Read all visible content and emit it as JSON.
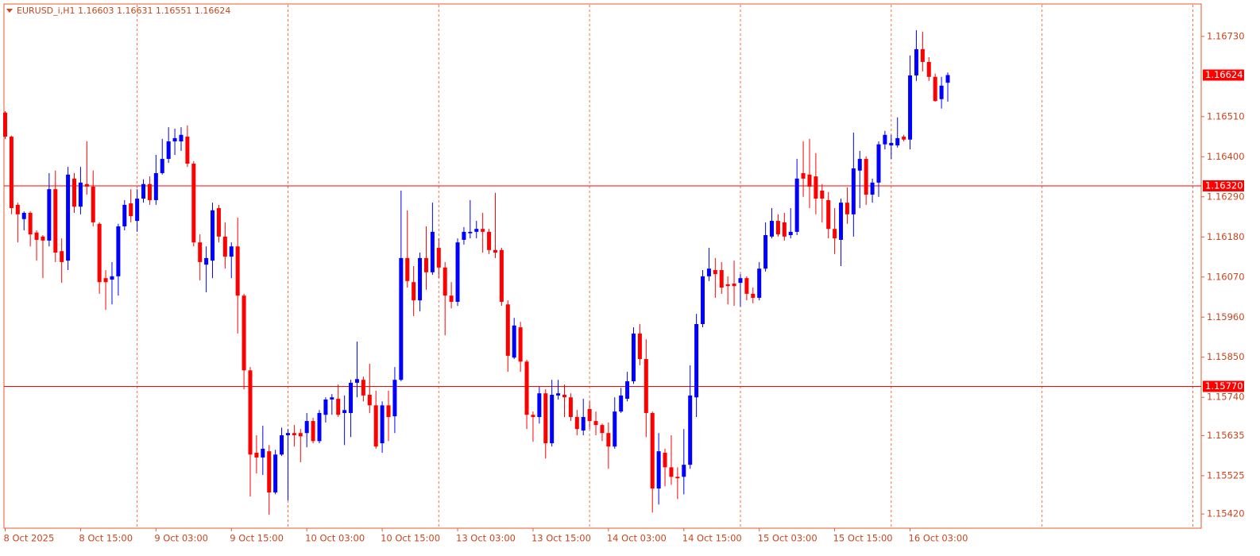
{
  "chart_data": {
    "type": "candlestick",
    "title": "EURUSD_i,H1  1.16603 1.16631 1.16551 1.16624",
    "up_color": "#0000ff",
    "down_color": "#ff0000",
    "hline_color": "#ff0000",
    "categories": [
      "8 Oct 2025",
      null,
      null,
      null,
      null,
      null,
      null,
      null,
      null,
      null,
      null,
      null,
      "8 Oct 15:00",
      null,
      null,
      null,
      null,
      null,
      null,
      null,
      null,
      null,
      null,
      null,
      "9 Oct 03:00",
      null,
      null,
      null,
      null,
      null,
      null,
      null,
      null,
      null,
      null,
      null,
      "9 Oct 15:00",
      null,
      null,
      null,
      null,
      null,
      null,
      null,
      null,
      null,
      null,
      null,
      "10 Oct 03:00",
      null,
      null,
      null,
      null,
      null,
      null,
      null,
      null,
      null,
      null,
      null,
      "10 Oct 15:00",
      null,
      null,
      null,
      null,
      null,
      null,
      null,
      null,
      null,
      null,
      null,
      "13 Oct 03:00",
      null,
      null,
      null,
      null,
      null,
      null,
      null,
      null,
      null,
      null,
      null,
      "13 Oct 15:00",
      null,
      null,
      null,
      null,
      null,
      null,
      null,
      null,
      null,
      null,
      null,
      "14 Oct 03:00",
      null,
      null,
      null,
      null,
      null,
      null,
      null,
      null,
      null,
      null,
      null,
      "14 Oct 15:00",
      null,
      null,
      null,
      null,
      null,
      null,
      null,
      null,
      null,
      null,
      null,
      "15 Oct 03:00",
      null,
      null,
      null,
      null,
      null,
      null,
      null,
      null,
      null,
      null,
      null,
      "15 Oct 15:00",
      null,
      null,
      null,
      null,
      null,
      null,
      null,
      null,
      null,
      null,
      null,
      "16 Oct 03:00",
      null,
      null,
      null,
      null,
      null,
      null
    ],
    "open": [
      1.16521,
      1.16455,
      1.16268,
      1.16229,
      1.16246,
      1.16192,
      1.16181,
      1.1617,
      1.16311,
      1.16141,
      1.16115,
      1.1634,
      1.16263,
      1.16325,
      1.16318,
      1.16216,
      1.16067,
      1.16063,
      1.16072,
      1.16209,
      1.16272,
      1.16224,
      1.16285,
      1.16325,
      1.16281,
      1.16355,
      1.16394,
      1.16442,
      1.16442,
      1.16455,
      1.16381,
      1.16165,
      1.16104,
      1.16115,
      1.16259,
      1.16181,
      1.16126,
      1.16154,
      1.16019,
      1.15814,
      1.15588,
      1.15575,
      1.15592,
      1.15479,
      1.15583,
      1.15636,
      1.15642,
      1.15642,
      1.15642,
      1.15675,
      1.1562,
      1.15692,
      1.15734,
      1.15736,
      1.15697,
      1.15697,
      1.1578,
      1.15788,
      1.15747,
      1.15718,
      1.15614,
      1.15718,
      1.15688,
      1.15788,
      1.16122,
      1.16056,
      1.16006,
      1.16122,
      1.16083,
      1.1615,
      1.16096,
      1.16019,
      1.16002,
      1.16172,
      1.1619,
      1.16194,
      1.16202,
      1.16194,
      1.16144,
      1.16144,
      1.15995,
      1.15849,
      1.15932,
      1.15838,
      1.15692,
      1.15686,
      1.15751,
      1.15614,
      1.15745,
      1.15747,
      1.1574,
      1.15686,
      1.15649,
      1.15708,
      1.15675,
      1.15664,
      1.15642,
      1.15605,
      1.15701,
      1.15736,
      1.15784,
      1.15915,
      1.15845,
      1.15697,
      1.1549,
      1.15588,
      1.15548,
      1.15522,
      1.15522,
      1.15555,
      1.1574,
      1.15941,
      1.16072,
      1.16089,
      1.16089,
      1.1605,
      1.16052,
      1.16054,
      1.16067,
      1.16024,
      1.16013,
      1.16093,
      1.16181,
      1.16224,
      1.1622,
      1.16185,
      1.16194,
      1.16355,
      1.16351,
      1.16346,
      1.16307,
      1.16281,
      1.16202,
      1.16172,
      1.16274,
      1.16242,
      1.16362,
      1.16394,
      1.16296,
      1.16329,
      1.16434,
      1.16431,
      1.16431,
      1.16455,
      1.16447,
      1.16623,
      1.16695,
      1.1666,
      1.16619,
      1.16558,
      1.16603
    ],
    "high": [
      1.16525,
      1.16458,
      1.16274,
      1.1625,
      1.1625,
      1.16198,
      1.16185,
      1.16355,
      1.16362,
      1.16176,
      1.16372,
      1.16355,
      1.16372,
      1.16442,
      1.16362,
      1.1622,
      1.16089,
      1.16111,
      1.16216,
      1.16281,
      1.16311,
      1.16311,
      1.16338,
      1.16346,
      1.16405,
      1.16449,
      1.16481,
      1.16477,
      1.16481,
      1.16486,
      1.16388,
      1.16187,
      1.16154,
      1.16274,
      1.16268,
      1.1622,
      1.16165,
      1.16233,
      1.16024,
      1.15823,
      1.15636,
      1.15662,
      1.15609,
      1.15596,
      1.15657,
      1.15653,
      1.15664,
      1.15653,
      1.15697,
      1.15684,
      1.15705,
      1.1574,
      1.15749,
      1.15775,
      1.15745,
      1.15788,
      1.15893,
      1.15797,
      1.15832,
      1.15758,
      1.15729,
      1.15758,
      1.15823,
      1.16307,
      1.16253,
      1.161,
      1.16137,
      1.16209,
      1.16274,
      1.16176,
      1.16111,
      1.16056,
      1.16176,
      1.16207,
      1.16281,
      1.16224,
      1.16246,
      1.16202,
      1.16301,
      1.1615,
      1.16006,
      1.15958,
      1.15947,
      1.15843,
      1.15701,
      1.15769,
      1.15762,
      1.15788,
      1.15788,
      1.15775,
      1.15751,
      1.15705,
      1.15736,
      1.15729,
      1.15701,
      1.15668,
      1.15671,
      1.1574,
      1.15766,
      1.1581,
      1.15932,
      1.15941,
      1.15899,
      1.15701,
      1.15642,
      1.15599,
      1.15636,
      1.15548,
      1.15653,
      1.15828,
      1.15969,
      1.16089,
      1.1615,
      1.16122,
      1.16111,
      1.16072,
      1.16115,
      1.16078,
      1.16072,
      1.16041,
      1.16111,
      1.1622,
      1.16259,
      1.16242,
      1.16246,
      1.16259,
      1.16394,
      1.16442,
      1.16449,
      1.1641,
      1.16325,
      1.16303,
      1.16259,
      1.16285,
      1.16316,
      1.16466,
      1.16416,
      1.16401,
      1.1634,
      1.16442,
      1.16471,
      1.1646,
      1.16508,
      1.1646,
      1.16678,
      1.16747,
      1.16743,
      1.16673,
      1.16628,
      1.16619,
      1.16631
    ],
    "low": [
      1.16449,
      1.16242,
      1.16165,
      1.16198,
      1.16154,
      1.16115,
      1.16067,
      1.16154,
      1.16111,
      1.16054,
      1.16089,
      1.16246,
      1.16242,
      1.16296,
      1.16209,
      1.16024,
      1.1598,
      1.15995,
      1.16019,
      1.16198,
      1.1622,
      1.16194,
      1.16274,
      1.16268,
      1.16268,
      1.16351,
      1.16383,
      1.16405,
      1.16416,
      1.16372,
      1.16154,
      1.16061,
      1.16028,
      1.16067,
      1.16165,
      1.16093,
      1.16067,
      1.15915,
      1.15762,
      1.15468,
      1.15531,
      1.15527,
      1.15418,
      1.15474,
      1.15579,
      1.15457,
      1.15605,
      1.15562,
      1.15603,
      1.15614,
      1.15614,
      1.15671,
      1.15692,
      1.15686,
      1.15609,
      1.15631,
      1.1574,
      1.15729,
      1.15697,
      1.15599,
      1.15588,
      1.1562,
      1.15642,
      1.15784,
      1.16041,
      1.15963,
      1.15976,
      1.16035,
      1.16076,
      1.16067,
      1.1591,
      1.15984,
      1.15991,
      1.16159,
      1.16176,
      1.16176,
      1.16137,
      1.16133,
      1.16122,
      1.15991,
      1.1581,
      1.15845,
      1.1581,
      1.15653,
      1.15618,
      1.15668,
      1.15572,
      1.15605,
      1.15734,
      1.15686,
      1.15675,
      1.15636,
      1.15636,
      1.15653,
      1.15636,
      1.1562,
      1.15544,
      1.15599,
      1.15697,
      1.15729,
      1.15777,
      1.15828,
      1.15631,
      1.15424,
      1.15446,
      1.15496,
      1.155,
      1.15461,
      1.15474,
      1.15544,
      1.15686,
      1.15932,
      1.16059,
      1.16013,
      1.16024,
      1.15995,
      1.15991,
      1.15989,
      1.16006,
      1.15998,
      1.16006,
      1.16085,
      1.16176,
      1.16181,
      1.1617,
      1.16176,
      1.16185,
      1.1629,
      1.16259,
      1.16242,
      1.1622,
      1.16176,
      1.16133,
      1.161,
      1.16216,
      1.16181,
      1.16259,
      1.16268,
      1.16274,
      1.1629,
      1.1642,
      1.16394,
      1.16425,
      1.16442,
      1.1642,
      1.16608,
      1.16634,
      1.16608,
      1.16551,
      1.16532,
      1.16551
    ],
    "close": [
      1.16455,
      1.16259,
      1.16242,
      1.16246,
      1.16187,
      1.16172,
      1.1617,
      1.16311,
      1.16137,
      1.16111,
      1.16351,
      1.16263,
      1.16329,
      1.16318,
      1.1622,
      1.16056,
      1.16056,
      1.16072,
      1.16209,
      1.16268,
      1.16237,
      1.16285,
      1.16325,
      1.16281,
      1.16355,
      1.16394,
      1.16442,
      1.16451,
      1.1646,
      1.16381,
      1.16165,
      1.16111,
      1.16122,
      1.16253,
      1.16181,
      1.16126,
      1.16154,
      1.16019,
      1.15814,
      1.15583,
      1.15575,
      1.15599,
      1.15479,
      1.15583,
      1.15636,
      1.15642,
      1.15636,
      1.15633,
      1.15675,
      1.1562,
      1.15697,
      1.15734,
      1.1574,
      1.15692,
      1.15705,
      1.1578,
      1.1579,
      1.15745,
      1.15718,
      1.15605,
      1.15718,
      1.15686,
      1.15788,
      1.16122,
      1.16059,
      1.16006,
      1.16122,
      1.16083,
      1.16194,
      1.16096,
      1.16019,
      1.16002,
      1.16165,
      1.16194,
      1.16194,
      1.16202,
      1.16194,
      1.16144,
      1.16137,
      1.16002,
      1.15854,
      1.15937,
      1.15838,
      1.15692,
      1.15686,
      1.15751,
      1.15614,
      1.15747,
      1.15751,
      1.1574,
      1.15686,
      1.15653,
      1.15686,
      1.15675,
      1.15664,
      1.15642,
      1.15605,
      1.15701,
      1.15745,
      1.15784,
      1.15915,
      1.15845,
      1.15697,
      1.1549,
      1.15592,
      1.15548,
      1.15522,
      1.15518,
      1.15555,
      1.15745,
      1.15941,
      1.16072,
      1.16093,
      1.16078,
      1.16041,
      1.16045,
      1.16045,
      1.16067,
      1.16024,
      1.16013,
      1.16093,
      1.16185,
      1.16224,
      1.16187,
      1.16181,
      1.16194,
      1.1634,
      1.1634,
      1.16318,
      1.16285,
      1.16285,
      1.16202,
      1.16176,
      1.16274,
      1.16242,
      1.16368,
      1.16394,
      1.16296,
      1.16329,
      1.16434,
      1.1646,
      1.16438,
      1.16451,
      1.16447,
      1.16623,
      1.16695,
      1.1666,
      1.16619,
      1.16553,
      1.16595,
      1.16624
    ],
    "ylim": [
      1.15381,
      1.16819
    ],
    "yticks": [
      {
        "value": 1.1673,
        "label": "1.16730"
      },
      {
        "value": 1.1651,
        "label": "1.16510"
      },
      {
        "value": 1.164,
        "label": "1.16400"
      },
      {
        "value": 1.1629,
        "label": "1.16290"
      },
      {
        "value": 1.1618,
        "label": "1.16180"
      },
      {
        "value": 1.1607,
        "label": "1.16070"
      },
      {
        "value": 1.1596,
        "label": "1.15960"
      },
      {
        "value": 1.1585,
        "label": "1.15850"
      },
      {
        "value": 1.1574,
        "label": "1.15740"
      },
      {
        "value": 1.15635,
        "label": "1.15635"
      },
      {
        "value": 1.15525,
        "label": "1.15525"
      },
      {
        "value": 1.1542,
        "label": "1.15420"
      }
    ],
    "hlines": [
      {
        "value": 1.1632,
        "label": "1.16320"
      },
      {
        "value": 1.1577,
        "label": "1.15770"
      }
    ],
    "price_label": {
      "value": 1.16624,
      "label": "1.16624"
    }
  }
}
